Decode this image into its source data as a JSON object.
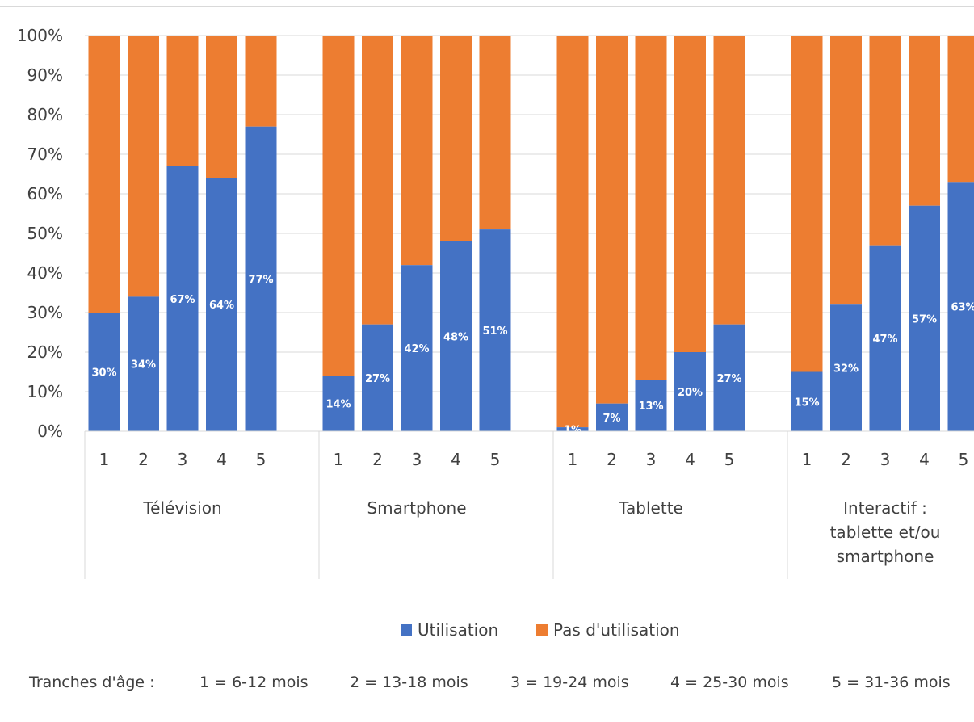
{
  "chart_data": {
    "type": "bar",
    "stacked": true,
    "percent_stacked": true,
    "groups": [
      {
        "label_lines": [
          "Télévision"
        ],
        "subcategories": [
          "1",
          "2",
          "3",
          "4",
          "5"
        ],
        "utilisation": [
          30,
          34,
          67,
          64,
          77
        ]
      },
      {
        "label_lines": [
          "Smartphone"
        ],
        "subcategories": [
          "1",
          "2",
          "3",
          "4",
          "5"
        ],
        "utilisation": [
          14,
          27,
          42,
          48,
          51
        ]
      },
      {
        "label_lines": [
          "Tablette"
        ],
        "subcategories": [
          "1",
          "2",
          "3",
          "4",
          "5"
        ],
        "utilisation": [
          1,
          7,
          13,
          20,
          27
        ]
      },
      {
        "label_lines": [
          "Interactif :",
          "tablette et/ou",
          "smartphone"
        ],
        "subcategories": [
          "1",
          "2",
          "3",
          "4",
          "5"
        ],
        "utilisation": [
          15,
          32,
          47,
          57,
          63
        ]
      }
    ],
    "series": [
      {
        "name": "Utilisation",
        "color": "#4472c4"
      },
      {
        "name": "Pas d'utilisation",
        "color": "#ed7d31"
      }
    ],
    "ylim": [
      0,
      100
    ],
    "yticks": [
      "0%",
      "10%",
      "20%",
      "30%",
      "40%",
      "50%",
      "60%",
      "70%",
      "80%",
      "90%",
      "100%"
    ],
    "grid": true,
    "legend_position": "bottom"
  },
  "footnote": {
    "prefix": "Tranches d'âge :",
    "items": [
      "1 = 6-12 mois",
      "2 = 13-18 mois",
      "3 = 19-24 mois",
      "4 = 25-30 mois",
      "5 = 31-36 mois"
    ]
  }
}
